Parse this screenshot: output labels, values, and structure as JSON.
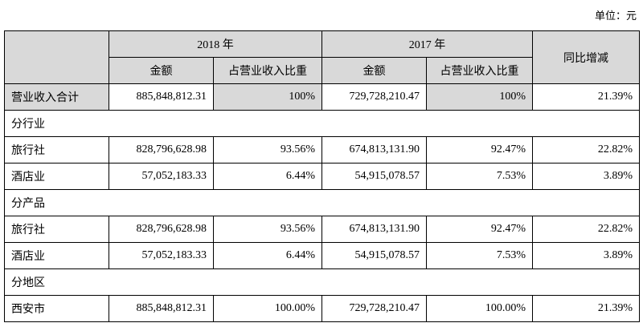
{
  "unit": "单位：元",
  "header": {
    "years": [
      "2018 年",
      "2017 年"
    ],
    "columns": [
      "金额",
      "占营业收入比重",
      "金额",
      "占营业收入比重"
    ],
    "change": "同比增减"
  },
  "table": {
    "rows": [
      [
        "营业收入合计",
        "885,848,812.31",
        "100%",
        "729,728,210.47",
        "100%",
        "21.39%"
      ],
      [
        "分行业"
      ],
      [
        "旅行社",
        "828,796,628.98",
        "93.56%",
        "674,813,131.90",
        "92.47%",
        "22.82%"
      ],
      [
        "酒店业",
        "57,052,183.33",
        "6.44%",
        "54,915,078.57",
        "7.53%",
        "3.89%"
      ],
      [
        "分产品"
      ],
      [
        "旅行社",
        "828,796,628.98",
        "93.56%",
        "674,813,131.90",
        "92.47%",
        "22.82%"
      ],
      [
        "酒店业",
        "57,052,183.33",
        "6.44%",
        "54,915,078.57",
        "7.53%",
        "3.89%"
      ],
      [
        "分地区"
      ],
      [
        "西安市",
        "885,848,812.31",
        "100.00%",
        "729,728,210.47",
        "100.00%",
        "21.39%"
      ]
    ]
  }
}
